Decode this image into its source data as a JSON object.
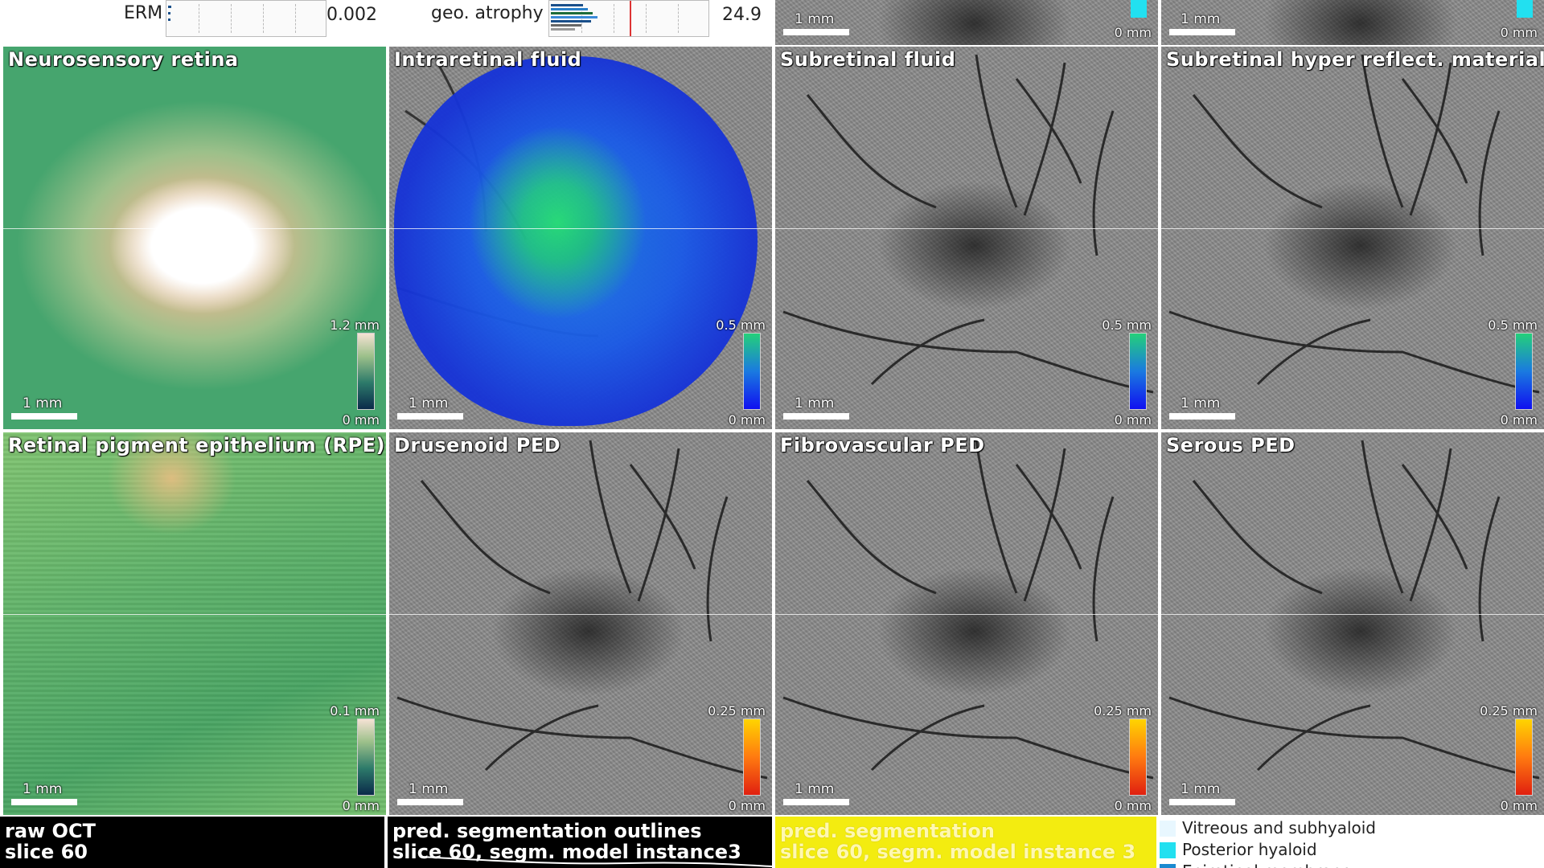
{
  "top_metrics": {
    "erm": {
      "label": "ERM",
      "value": "0.002"
    },
    "geo_atrophy": {
      "label": "geo. atrophy",
      "value": "24.9"
    }
  },
  "top_stubs": [
    {
      "scale": "1 mm",
      "min": "0 mm"
    },
    {
      "scale": "1 mm",
      "min": "0 mm"
    }
  ],
  "panels": [
    {
      "title": "Neurosensory retina",
      "scale": "1 mm",
      "cbar_max": "1.2 mm",
      "cbar_min": "0 mm"
    },
    {
      "title": "Intraretinal fluid",
      "scale": "1 mm",
      "cbar_max": "0.5 mm",
      "cbar_min": "0 mm"
    },
    {
      "title": "Subretinal fluid",
      "scale": "1 mm",
      "cbar_max": "0.5 mm",
      "cbar_min": "0 mm"
    },
    {
      "title": "Subretinal hyper reflect. material",
      "scale": "1 mm",
      "cbar_max": "0.5 mm",
      "cbar_min": "0 mm"
    },
    {
      "title": "Retinal pigment epithelium (RPE)",
      "scale": "1 mm",
      "cbar_max": "0.1 mm",
      "cbar_min": "0 mm"
    },
    {
      "title": "Drusenoid PED",
      "scale": "1 mm",
      "cbar_max": "0.25 mm",
      "cbar_min": "0 mm"
    },
    {
      "title": "Fibrovascular PED",
      "scale": "1 mm",
      "cbar_max": "0.25 mm",
      "cbar_min": "0 mm"
    },
    {
      "title": "Serous PED",
      "scale": "1 mm",
      "cbar_max": "0.25 mm",
      "cbar_min": "0 mm"
    }
  ],
  "bottom": {
    "raw": {
      "line1": "raw OCT",
      "line2": "slice 60"
    },
    "outlines": {
      "line1": "pred. segmentation outlines",
      "line2": "slice 60, segm. model instance3"
    },
    "pred": {
      "line1": "pred. segmentation",
      "line2": "slice 60, segm. model instance 3"
    }
  },
  "legend": [
    {
      "label": "Vitreous and subhyaloid",
      "color": "#e8f7ff"
    },
    {
      "label": "Posterior hyaloid",
      "color": "#22e0f0"
    },
    {
      "label": "Epiretinal membrane",
      "color": "#1a8ad0"
    }
  ],
  "colors": {
    "fluid_blue": "#1a5ae8",
    "ped_orange": "#ff7a10",
    "pred_yellow": "#f3ec10"
  }
}
